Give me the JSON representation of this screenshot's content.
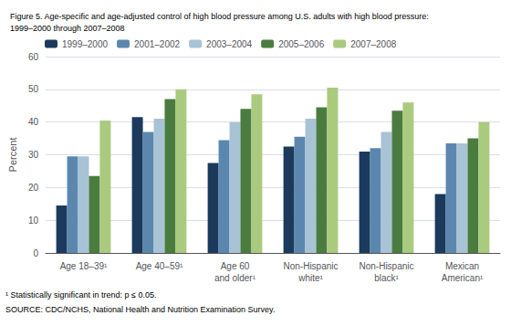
{
  "chart_data": {
    "type": "bar",
    "title": "Figure 5. Age-specific and age-adjusted control of high blood pressure among U.S. adults with high blood pressure:\n1999–2000 through 2007–2008",
    "categories": [
      "Age 18–39¹",
      "Age 40–59¹",
      "Age 60\nand older¹",
      "Non-Hispanic\nwhite¹",
      "Non-Hispanic\nblack¹",
      "Mexican\nAmerican¹"
    ],
    "series": [
      {
        "name": "1999–2000",
        "color": "#1b3a5c",
        "values": [
          14.5,
          41.5,
          27.5,
          32.5,
          31.0,
          18.0
        ]
      },
      {
        "name": "2001–2002",
        "color": "#5b87ae",
        "values": [
          29.5,
          37.0,
          34.5,
          35.5,
          32.0,
          33.5
        ]
      },
      {
        "name": "2003–2004",
        "color": "#a9c3d6",
        "values": [
          29.5,
          41.0,
          40.0,
          41.0,
          37.0,
          33.5
        ]
      },
      {
        "name": "2005–2006",
        "color": "#4a7c3f",
        "values": [
          23.5,
          47.0,
          44.0,
          44.5,
          43.5,
          35.0
        ]
      },
      {
        "name": "2007–2008",
        "color": "#aaca7e",
        "values": [
          40.5,
          50.0,
          48.5,
          50.5,
          46.0,
          40.0
        ]
      }
    ],
    "ylabel": "Percent",
    "ylim": [
      0,
      60
    ],
    "yticks": [
      0,
      10,
      20,
      30,
      40,
      50,
      60
    ],
    "grid": true,
    "legend": "upper left",
    "annotations": [
      "¹ Statistically significant in trend: p ≤ 0.05.",
      "SOURCE: CDC/NCHS, National Health and Nutrition Examination Survey."
    ]
  }
}
